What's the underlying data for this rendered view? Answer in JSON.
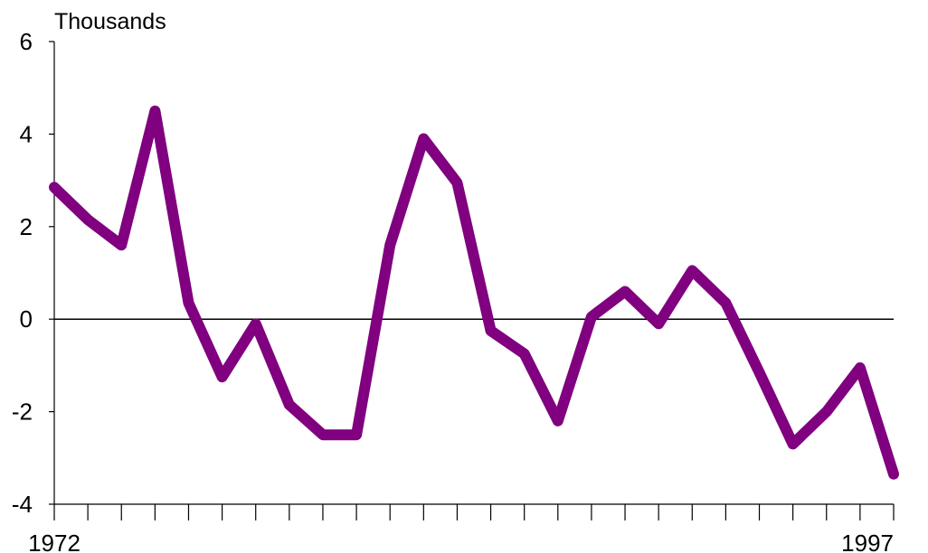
{
  "chart_data": {
    "type": "line",
    "unit_label": "Thousands",
    "ylim": [
      -4,
      6
    ],
    "yticks": [
      6,
      4,
      2,
      0,
      -2,
      -4
    ],
    "ytick_labels": [
      "6",
      "4",
      "2",
      "0",
      "-2",
      "-4"
    ],
    "xlim": [
      1972,
      1997
    ],
    "xtick_labels_shown": [
      "1972",
      "1997"
    ],
    "zero_line": true,
    "grid": false,
    "x": [
      1972,
      1973,
      1974,
      1975,
      1976,
      1977,
      1978,
      1979,
      1980,
      1981,
      1982,
      1983,
      1984,
      1985,
      1986,
      1987,
      1988,
      1989,
      1990,
      1991,
      1992,
      1993,
      1994,
      1995,
      1996,
      1997
    ],
    "series": [
      {
        "color": "#800080",
        "values": [
          2.85,
          2.15,
          1.6,
          4.5,
          0.35,
          -1.25,
          -0.1,
          -1.85,
          -2.5,
          -2.5,
          1.6,
          3.9,
          2.95,
          -0.25,
          -0.75,
          -2.2,
          0.05,
          0.6,
          -0.1,
          1.05,
          0.35,
          -1.15,
          -2.7,
          -2.0,
          -1.05,
          -3.35
        ]
      }
    ]
  }
}
